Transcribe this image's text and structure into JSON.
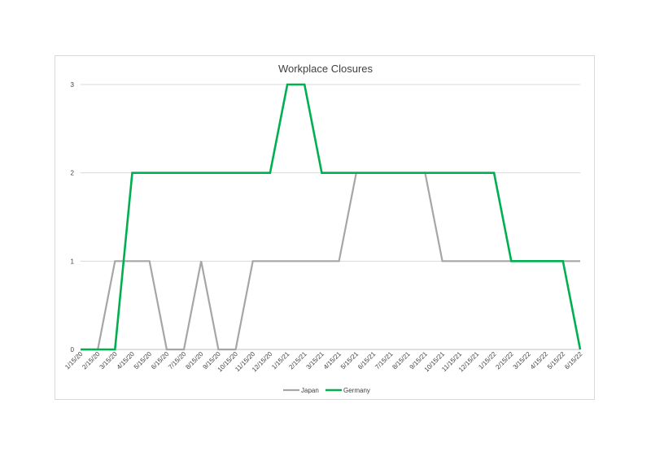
{
  "chart_data": {
    "type": "line",
    "title": "Workplace Closures",
    "xlabel": "",
    "ylabel": "",
    "ylim": [
      0,
      3
    ],
    "y_ticks": [
      "0",
      "1",
      "2",
      "3"
    ],
    "grid": true,
    "legend_position": "bottom",
    "categories": [
      "1/15/20",
      "2/15/20",
      "3/15/20",
      "4/15/20",
      "5/15/20",
      "6/15/20",
      "7/15/20",
      "8/15/20",
      "9/15/20",
      "10/15/20",
      "11/15/20",
      "12/15/20",
      "1/15/21",
      "2/15/21",
      "3/15/21",
      "4/15/21",
      "5/15/21",
      "6/15/21",
      "7/15/21",
      "8/15/21",
      "9/15/21",
      "10/15/21",
      "11/15/21",
      "12/15/21",
      "1/15/22",
      "2/15/22",
      "3/15/22",
      "4/15/22",
      "5/15/22",
      "6/15/22"
    ],
    "series": [
      {
        "name": "Japan",
        "color": "#a6a6a6",
        "values": [
          0,
          0,
          1,
          1,
          1,
          0,
          0,
          1,
          0,
          0,
          1,
          1,
          1,
          1,
          1,
          1,
          2,
          2,
          2,
          2,
          2,
          1,
          1,
          1,
          1,
          1,
          1,
          1,
          1,
          1
        ]
      },
      {
        "name": "Germany",
        "color": "#00b050",
        "values": [
          0,
          0,
          0,
          2,
          2,
          2,
          2,
          2,
          2,
          2,
          2,
          2,
          3,
          3,
          2,
          2,
          2,
          2,
          2,
          2,
          2,
          2,
          2,
          2,
          2,
          1,
          1,
          1,
          1,
          0
        ]
      }
    ]
  }
}
